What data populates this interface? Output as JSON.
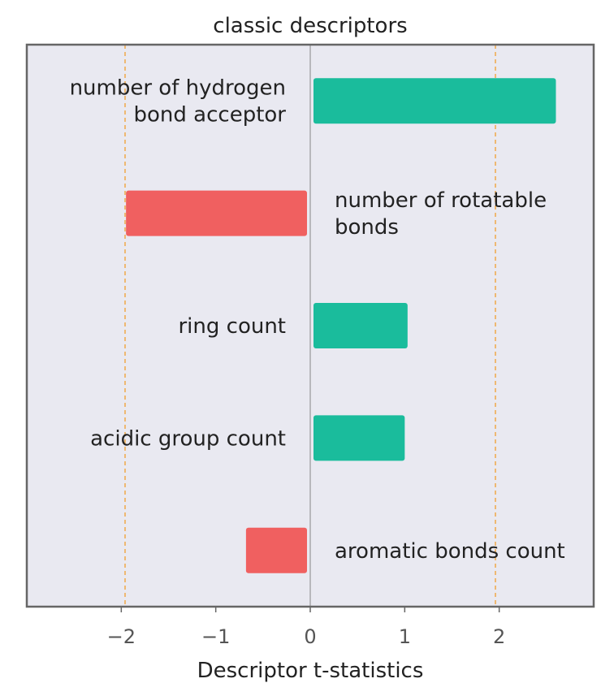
{
  "chart_data": {
    "type": "bar",
    "orientation": "horizontal",
    "title": "classic descriptors",
    "xlabel": "Descriptor t-statistics",
    "ylabel": "",
    "xlim": [
      -3.0,
      3.0
    ],
    "xticks": [
      -2,
      -1,
      0,
      1,
      2
    ],
    "xtick_labels": [
      "−2",
      "−1",
      "0",
      "1",
      "2"
    ],
    "reference_lines": [
      -1.96,
      1.96
    ],
    "categories": [
      "number of hydrogen bond acceptor",
      "number of rotatable bonds",
      "ring count",
      "acidic group count",
      "aromatic bonds count"
    ],
    "category_label_lines": [
      [
        "number of hydrogen",
        "bond acceptor"
      ],
      [
        "number of rotatable",
        "bonds"
      ],
      [
        "ring count"
      ],
      [
        "acidic group count"
      ],
      [
        "aromatic bonds count"
      ]
    ],
    "values": [
      2.6,
      -1.95,
      1.03,
      1.0,
      -0.68
    ],
    "grid": false,
    "legend": "none"
  },
  "colors": {
    "positive": "#1abc9c",
    "negative": "#f06060",
    "plot_background": "#e9e9f1",
    "frame": "#666666",
    "reference_line": "#f0a848",
    "zero_line": "#888888"
  }
}
